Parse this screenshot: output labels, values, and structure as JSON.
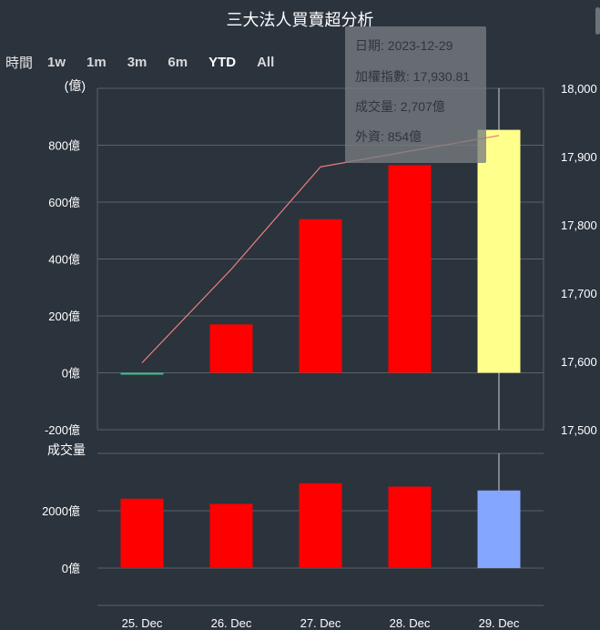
{
  "title": "三大法人買賣超分析",
  "range_selector": {
    "label": "時間",
    "buttons": [
      "1w",
      "1m",
      "3m",
      "6m",
      "YTD",
      "All"
    ],
    "selected": "YTD"
  },
  "tooltip": {
    "date": "日期: 2023-12-29",
    "index": "加權指數: 17,930.81",
    "volume": "成交量: 2,707億",
    "foreign": "外資: 854億"
  },
  "colors": {
    "positive_bar": "#ff0000",
    "negative_bar": "#3fbf8f",
    "highlight_bar": "#ffff8c",
    "highlight_volume": "#85a6ff",
    "index_line": "#f08080",
    "grid": "#5b626a",
    "background": "#2b333d"
  },
  "chart_data": [
    {
      "type": "bar",
      "categories": [
        "25. Dec",
        "26. Dec",
        "27. Dec",
        "28. Dec",
        "29. Dec"
      ],
      "ylabel": "(億)",
      "y_unit": "億",
      "ylim": [
        -200,
        1000
      ],
      "yticks": [
        -200,
        0,
        200,
        400,
        600,
        800
      ],
      "series": [
        {
          "values": [
            -5,
            170,
            540,
            730,
            854
          ]
        }
      ],
      "secondary_axis": {
        "ylim": [
          17500,
          18000
        ],
        "yticks": [
          "17,500",
          "17,600",
          "17,700",
          "17,800",
          "17,900",
          "18,000"
        ],
        "tick_values": [
          17500,
          17600,
          17700,
          17800,
          17900,
          18000
        ]
      },
      "line_series": {
        "values": [
          17598,
          17735,
          17885,
          17908,
          17930.81
        ]
      },
      "highlighted_index": 4,
      "grid": true
    },
    {
      "type": "bar",
      "ylabel": "成交量",
      "y_unit": "億",
      "categories": [
        "25. Dec",
        "26. Dec",
        "27. Dec",
        "28. Dec",
        "29. Dec"
      ],
      "ylim": [
        0,
        4000
      ],
      "yticks": [
        0,
        2000
      ],
      "series": [
        {
          "values": [
            2420,
            2240,
            2960,
            2840,
            2707
          ]
        }
      ],
      "highlighted_index": 4,
      "grid": true
    }
  ]
}
